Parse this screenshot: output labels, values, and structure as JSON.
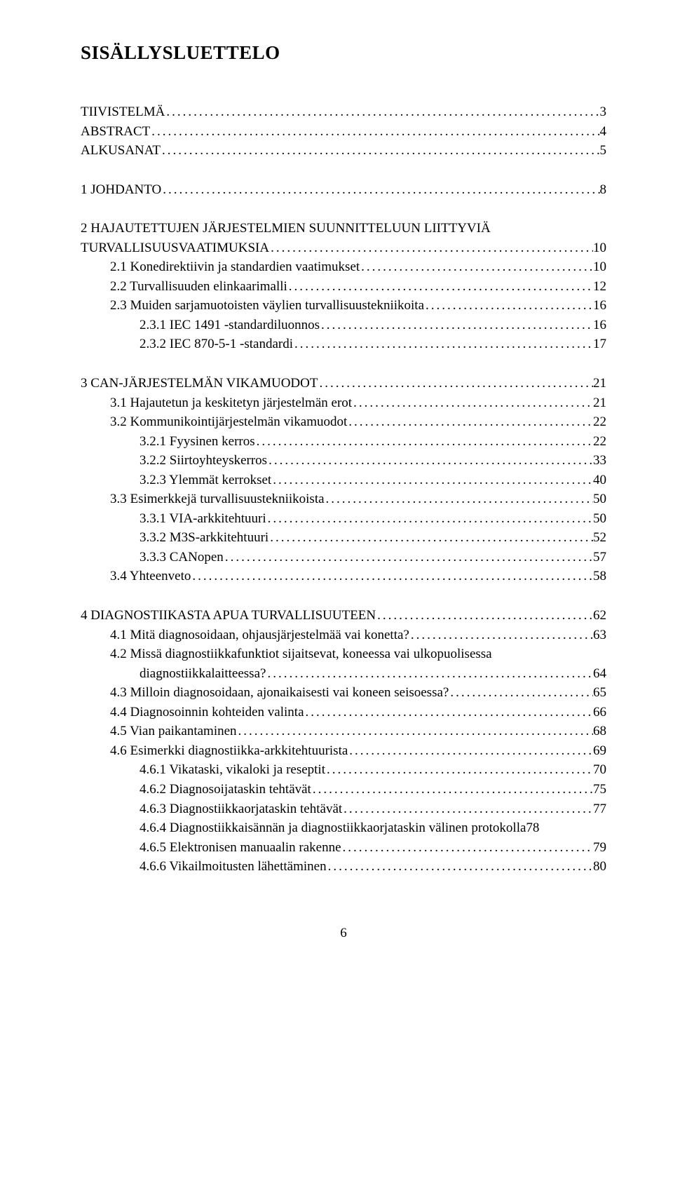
{
  "title": "SISÄLLYSLUETTELO",
  "page_number": "6",
  "toc": [
    {
      "indent": 0,
      "label": "TIIVISTELMÄ",
      "page": "3",
      "spacer_before": false
    },
    {
      "indent": 0,
      "label": "ABSTRACT",
      "page": "4",
      "spacer_before": false
    },
    {
      "indent": 0,
      "label": "ALKUSANAT",
      "page": "5",
      "spacer_before": false
    },
    {
      "indent": 0,
      "label": "1 JOHDANTO",
      "page": "8",
      "spacer_before": true
    },
    {
      "indent": 0,
      "label": "2 HAJAUTETTUJEN JÄRJESTELMIEN SUUNNITTELUUN LIITTYVIÄ",
      "page": "",
      "spacer_before": true,
      "nodots": true
    },
    {
      "indent": 0,
      "label": "TURVALLISUUSVAATIMUKSIA",
      "page": "10",
      "spacer_before": false
    },
    {
      "indent": 1,
      "label": "2.1 Konedirektiivin ja standardien vaatimukset",
      "page": "10",
      "spacer_before": false
    },
    {
      "indent": 1,
      "label": "2.2 Turvallisuuden elinkaarimalli",
      "page": "12",
      "spacer_before": false
    },
    {
      "indent": 1,
      "label": "2.3 Muiden sarjamuotoisten väylien turvallisuustekniikoita",
      "page": "16",
      "spacer_before": false
    },
    {
      "indent": 2,
      "label": "2.3.1 IEC 1491 -standardiluonnos",
      "page": "16",
      "spacer_before": false
    },
    {
      "indent": 2,
      "label": "2.3.2 IEC 870-5-1 -standardi",
      "page": "17",
      "spacer_before": false
    },
    {
      "indent": 0,
      "label": "3 CAN-JÄRJESTELMÄN VIKAMUODOT",
      "page": "21",
      "spacer_before": true
    },
    {
      "indent": 1,
      "label": "3.1 Hajautetun ja keskitetyn järjestelmän erot",
      "page": "21",
      "spacer_before": false
    },
    {
      "indent": 1,
      "label": "3.2 Kommunikointijärjestelmän vikamuodot",
      "page": "22",
      "spacer_before": false
    },
    {
      "indent": 2,
      "label": "3.2.1 Fyysinen kerros",
      "page": "22",
      "spacer_before": false
    },
    {
      "indent": 2,
      "label": "3.2.2 Siirtoyhteyskerros",
      "page": "33",
      "spacer_before": false
    },
    {
      "indent": 2,
      "label": "3.2.3 Ylemmät kerrokset",
      "page": "40",
      "spacer_before": false
    },
    {
      "indent": 1,
      "label": "3.3 Esimerkkejä turvallisuustekniikoista",
      "page": "50",
      "spacer_before": false
    },
    {
      "indent": 2,
      "label": "3.3.1 VIA-arkkitehtuuri",
      "page": "50",
      "spacer_before": false
    },
    {
      "indent": 2,
      "label": "3.3.2 M3S-arkkitehtuuri",
      "page": "52",
      "spacer_before": false
    },
    {
      "indent": 2,
      "label": "3.3.3 CANopen",
      "page": "57",
      "spacer_before": false
    },
    {
      "indent": 1,
      "label": "3.4 Yhteenveto",
      "page": "58",
      "spacer_before": false
    },
    {
      "indent": 0,
      "label": "4 DIAGNOSTIIKASTA APUA TURVALLISUUTEEN",
      "page": "62",
      "spacer_before": true
    },
    {
      "indent": 1,
      "label": "4.1 Mitä diagnosoidaan, ohjausjärjestelmää vai konetta?",
      "page": "63",
      "spacer_before": false
    },
    {
      "indent": 1,
      "label": "4.2 Missä diagnostiikkafunktiot sijaitsevat, koneessa vai ulkopuolisessa",
      "page": "",
      "spacer_before": false,
      "nodots": true
    },
    {
      "indent": 2,
      "label": "diagnostiikkalaitteessa?",
      "page": "64",
      "spacer_before": false
    },
    {
      "indent": 1,
      "label": "4.3 Milloin diagnosoidaan, ajonaikaisesti vai koneen seisoessa?",
      "page": "65",
      "spacer_before": false
    },
    {
      "indent": 1,
      "label": "4.4 Diagnosoinnin kohteiden valinta",
      "page": "66",
      "spacer_before": false
    },
    {
      "indent": 1,
      "label": "4.5 Vian paikantaminen",
      "page": "68",
      "spacer_before": false
    },
    {
      "indent": 1,
      "label": "4.6 Esimerkki diagnostiikka-arkkitehtuurista",
      "page": "69",
      "spacer_before": false
    },
    {
      "indent": 2,
      "label": "4.6.1 Vikataski, vikaloki ja reseptit",
      "page": "70",
      "spacer_before": false
    },
    {
      "indent": 2,
      "label": "4.6.2 Diagnosoijataskin tehtävät",
      "page": "75",
      "spacer_before": false
    },
    {
      "indent": 2,
      "label": "4.6.3 Diagnostiikkaorjataskin tehtävät",
      "page": "77",
      "spacer_before": false
    },
    {
      "indent": 2,
      "label": "4.6.4 Diagnostiikkaisännän ja diagnostiikkaorjataskin välinen protokolla",
      "page": "78",
      "spacer_before": false,
      "tight": true
    },
    {
      "indent": 2,
      "label": "4.6.5 Elektronisen manuaalin rakenne",
      "page": "79",
      "spacer_before": false
    },
    {
      "indent": 2,
      "label": "4.6.6 Vikailmoitusten lähettäminen",
      "page": "80",
      "spacer_before": false
    }
  ]
}
